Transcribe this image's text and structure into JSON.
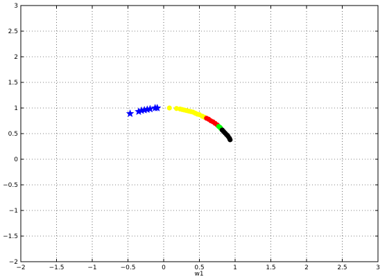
{
  "chart_data": {
    "type": "scatter",
    "title": "",
    "xlabel": "w1",
    "ylabel": "",
    "xlim": [
      -2,
      3
    ],
    "ylim": [
      -2,
      3
    ],
    "grid": "on",
    "grid_style": "dotted",
    "x_ticks": [
      -2,
      -1.5,
      -1,
      -0.5,
      0,
      0.5,
      1,
      1.5,
      2,
      2.5,
      3
    ],
    "y_ticks": [
      -2,
      -1.5,
      -1,
      -0.5,
      0,
      0.5,
      1,
      1.5,
      2,
      2.5,
      3
    ],
    "x_tick_labels": [
      "−2",
      "−1.5",
      "−1",
      "−0.5",
      "0",
      "0.5",
      "1",
      "1.5",
      "2",
      "2.5",
      "3"
    ],
    "y_tick_labels": [
      "−2",
      "−1.5",
      "−1",
      "−0.5",
      "0",
      "0.5",
      "1",
      "1.5",
      "2",
      "2.5",
      "3"
    ],
    "series": [
      {
        "color": "#0000ff",
        "marker": "star",
        "points": [
          [
            -0.47,
            0.89
          ],
          [
            -0.35,
            0.93
          ],
          [
            -0.31,
            0.95
          ],
          [
            -0.27,
            0.96
          ],
          [
            -0.23,
            0.97
          ],
          [
            -0.19,
            0.98
          ],
          [
            -0.12,
            1.0
          ],
          [
            -0.09,
            1.0
          ]
        ]
      },
      {
        "color": "#ffff00",
        "marker": "dot",
        "points": [
          [
            0.08,
            1.0
          ],
          [
            0.18,
            0.99
          ],
          [
            0.23,
            0.98
          ],
          [
            0.26,
            0.97
          ],
          [
            0.29,
            0.96
          ],
          [
            0.32,
            0.95
          ],
          [
            0.35,
            0.94
          ],
          [
            0.38,
            0.93
          ],
          [
            0.41,
            0.92
          ],
          [
            0.44,
            0.9
          ],
          [
            0.47,
            0.88
          ],
          [
            0.5,
            0.87
          ],
          [
            0.54,
            0.84
          ],
          [
            0.57,
            0.82
          ]
        ]
      },
      {
        "color": "#ff0000",
        "marker": "dot",
        "points": [
          [
            0.6,
            0.8
          ],
          [
            0.63,
            0.78
          ],
          [
            0.66,
            0.75
          ],
          [
            0.69,
            0.73
          ],
          [
            0.72,
            0.7
          ],
          [
            0.75,
            0.67
          ]
        ]
      },
      {
        "color": "#00ff00",
        "marker": "dot",
        "points": [
          [
            0.77,
            0.64
          ],
          [
            0.79,
            0.62
          ],
          [
            0.8,
            0.6
          ]
        ]
      },
      {
        "color": "#000000",
        "marker": "dot",
        "points": [
          [
            0.82,
            0.57
          ],
          [
            0.84,
            0.54
          ],
          [
            0.86,
            0.51
          ],
          [
            0.88,
            0.48
          ],
          [
            0.9,
            0.45
          ],
          [
            0.92,
            0.41
          ],
          [
            0.93,
            0.38
          ]
        ]
      }
    ]
  }
}
